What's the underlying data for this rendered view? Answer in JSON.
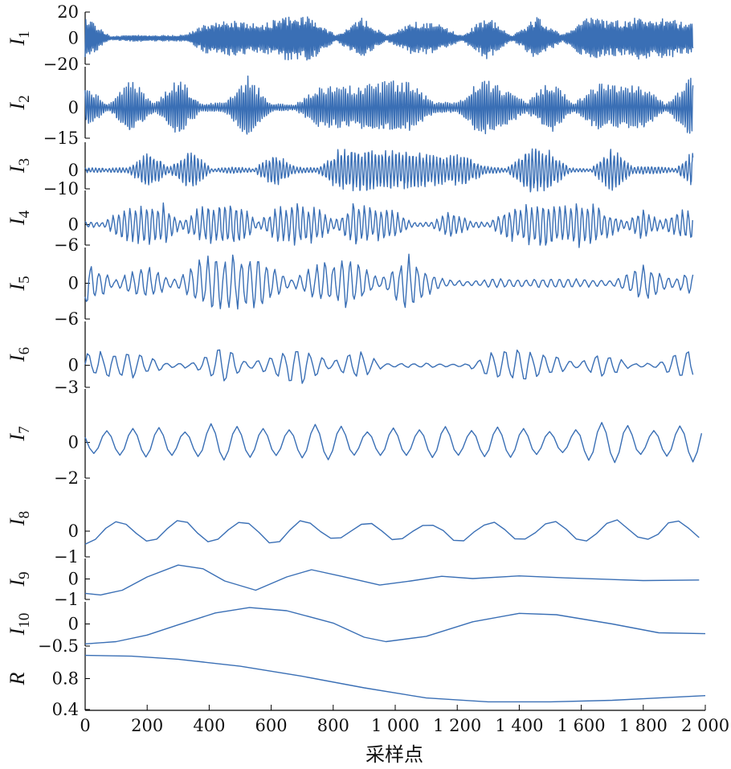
{
  "chart_data": {
    "type": "line",
    "xlabel": "采样点",
    "xlim": [
      0,
      2000
    ],
    "x_ticks": [
      {
        "value": 0,
        "label": "0"
      },
      {
        "value": 200,
        "label": "200"
      },
      {
        "value": 400,
        "label": "400"
      },
      {
        "value": 600,
        "label": "600"
      },
      {
        "value": 800,
        "label": "800"
      },
      {
        "value": 1000,
        "label": "1 000"
      },
      {
        "value": 1200,
        "label": "1 200"
      },
      {
        "value": 1400,
        "label": "1 400"
      },
      {
        "value": 1600,
        "label": "1 600"
      },
      {
        "value": 1800,
        "label": "1 800"
      },
      {
        "value": 2000,
        "label": "2 000"
      }
    ],
    "line_color": "#3a6fb5",
    "subplots": [
      {
        "label": "I",
        "sub": "1",
        "ylim": [
          -20,
          20
        ],
        "yticks": [
          {
            "v": 20,
            "t": "20"
          },
          {
            "v": 0,
            "t": "0"
          },
          {
            "v": -20,
            "t": "−20"
          }
        ],
        "kind": "burst",
        "amp": 14,
        "period": 5,
        "seed": 1
      },
      {
        "label": "I",
        "sub": "2",
        "ylim": [
          -15,
          20
        ],
        "yticks": [
          {
            "v": 0,
            "t": "0"
          },
          {
            "v": -15,
            "t": "−15"
          }
        ],
        "kind": "burst",
        "amp": 13,
        "period": 7,
        "seed": 2
      },
      {
        "label": "I",
        "sub": "3",
        "ylim": [
          -10,
          15
        ],
        "yticks": [
          {
            "v": 0,
            "t": "0"
          },
          {
            "v": -10,
            "t": "−10"
          }
        ],
        "kind": "burst",
        "amp": 10,
        "period": 11,
        "seed": 3
      },
      {
        "label": "I",
        "sub": "4",
        "ylim": [
          -6,
          10
        ],
        "yticks": [
          {
            "v": 0,
            "t": "0"
          },
          {
            "v": -6,
            "t": "−6"
          }
        ],
        "kind": "burst",
        "amp": 6,
        "period": 18,
        "seed": 4
      },
      {
        "label": "I",
        "sub": "5",
        "ylim": [
          -6,
          6
        ],
        "yticks": [
          {
            "v": 0,
            "t": "0"
          },
          {
            "v": -6,
            "t": "−6"
          }
        ],
        "kind": "burst",
        "amp": 4,
        "period": 27,
        "seed": 5
      },
      {
        "label": "I",
        "sub": "6",
        "ylim": [
          -3,
          6
        ],
        "yticks": [
          {
            "v": 0,
            "t": "0"
          },
          {
            "v": -3,
            "t": "−3"
          }
        ],
        "kind": "burst",
        "amp": 2.3,
        "period": 42,
        "seed": 6
      },
      {
        "label": "I",
        "sub": "7",
        "ylim": [
          -2,
          3
        ],
        "yticks": [
          {
            "v": 0,
            "t": "0"
          },
          {
            "v": -2,
            "t": "−2"
          }
        ],
        "kind": "osc",
        "amp": 1.15,
        "period": 84,
        "seed": 7
      },
      {
        "label": "I",
        "sub": "8",
        "ylim": [
          -1,
          2
        ],
        "yticks": [
          {
            "v": 0,
            "t": "0"
          },
          {
            "v": -1,
            "t": "−1"
          }
        ],
        "kind": "osc",
        "amp": 0.55,
        "period": 200,
        "seed": 8
      },
      {
        "label": "I",
        "sub": "9",
        "ylim": [
          -1,
          1
        ],
        "yticks": [
          {
            "v": 0,
            "t": "0"
          },
          {
            "v": -1,
            "t": "−1"
          }
        ],
        "kind": "points",
        "pts": [
          [
            0,
            -0.7
          ],
          [
            50,
            -0.78
          ],
          [
            120,
            -0.55
          ],
          [
            200,
            0.1
          ],
          [
            300,
            0.68
          ],
          [
            380,
            0.5
          ],
          [
            450,
            -0.1
          ],
          [
            550,
            -0.55
          ],
          [
            650,
            0.1
          ],
          [
            730,
            0.45
          ],
          [
            830,
            0.12
          ],
          [
            950,
            -0.3
          ],
          [
            1050,
            -0.1
          ],
          [
            1150,
            0.13
          ],
          [
            1250,
            0.02
          ],
          [
            1400,
            0.15
          ],
          [
            1550,
            0.05
          ],
          [
            1800,
            -0.08
          ],
          [
            1980,
            -0.05
          ]
        ]
      },
      {
        "label": "I",
        "sub": "10",
        "ylim": [
          -0.5,
          0.5
        ],
        "yticks": [
          {
            "v": 0,
            "t": "0"
          },
          {
            "v": -0.5,
            "t": "−0.5"
          }
        ],
        "kind": "points",
        "pts": [
          [
            0,
            -0.45
          ],
          [
            100,
            -0.4
          ],
          [
            200,
            -0.25
          ],
          [
            300,
            -0.02
          ],
          [
            420,
            0.25
          ],
          [
            530,
            0.37
          ],
          [
            650,
            0.3
          ],
          [
            800,
            0.02
          ],
          [
            900,
            -0.3
          ],
          [
            970,
            -0.4
          ],
          [
            1100,
            -0.28
          ],
          [
            1250,
            0.05
          ],
          [
            1400,
            0.24
          ],
          [
            1520,
            0.21
          ],
          [
            1700,
            0.0
          ],
          [
            1850,
            -0.2
          ],
          [
            2000,
            -0.22
          ]
        ]
      },
      {
        "label": "R",
        "sub": "",
        "ylim": [
          0.4,
          1.2
        ],
        "yticks": [
          {
            "v": 0.8,
            "t": "0.8"
          },
          {
            "v": 0.4,
            "t": "0.4"
          }
        ],
        "kind": "points",
        "pts": [
          [
            0,
            1.1
          ],
          [
            150,
            1.09
          ],
          [
            300,
            1.05
          ],
          [
            500,
            0.96
          ],
          [
            700,
            0.83
          ],
          [
            900,
            0.68
          ],
          [
            1100,
            0.55
          ],
          [
            1300,
            0.5
          ],
          [
            1500,
            0.5
          ],
          [
            1700,
            0.52
          ],
          [
            1850,
            0.55
          ],
          [
            2000,
            0.58
          ]
        ]
      }
    ]
  }
}
